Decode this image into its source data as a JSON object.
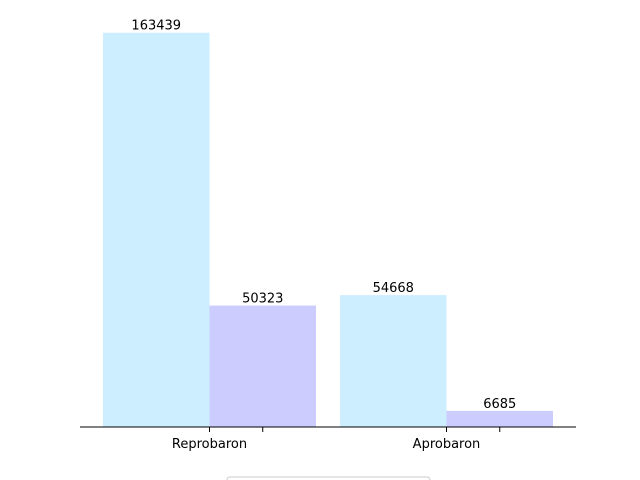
{
  "chart_data": {
    "type": "bar",
    "categories": [
      "Reprobaron",
      "Aprobaron"
    ],
    "series": [
      {
        "values": [
          163439,
          54668
        ],
        "color": "#cceeff"
      },
      {
        "values": [
          50323,
          6685
        ],
        "color": "#ccccff"
      }
    ],
    "ylim": [
      0,
      171611
    ],
    "axes": {
      "left_axis": false,
      "ticks_shown": true,
      "grid": false
    },
    "legend": {
      "placement": "bottom-center",
      "entries_visible": false
    }
  }
}
